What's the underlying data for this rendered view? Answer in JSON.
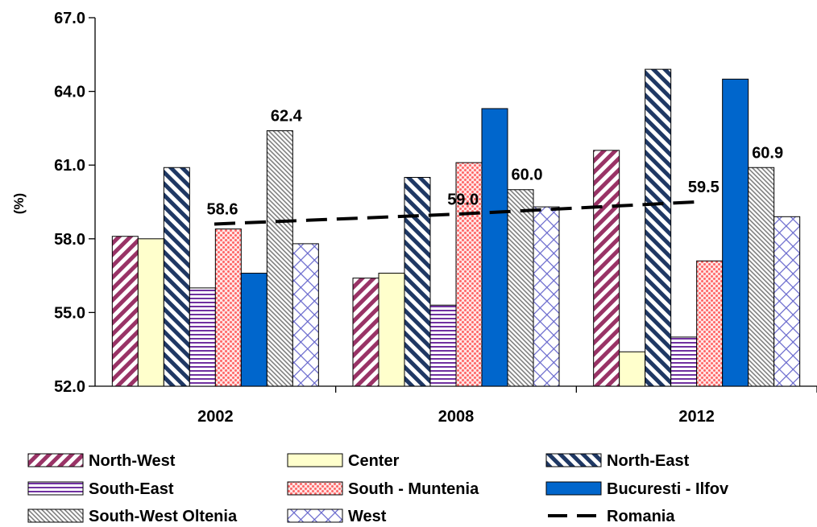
{
  "chart_data": {
    "type": "bar",
    "ylabel": "(%)",
    "ylim": [
      52.0,
      67.0
    ],
    "yticks": [
      "52.0",
      "55.0",
      "58.0",
      "61.0",
      "64.0",
      "67.0"
    ],
    "categories": [
      "2002",
      "2008",
      "2012"
    ],
    "series": [
      {
        "name": "North-West",
        "values": [
          58.1,
          56.4,
          61.6
        ],
        "pattern": "diag-maroon",
        "color": "#993366"
      },
      {
        "name": "Center",
        "values": [
          58.0,
          56.6,
          53.4
        ],
        "pattern": "solid-cream",
        "color": "#FFFFCC"
      },
      {
        "name": "North-East",
        "values": [
          60.9,
          60.5,
          64.9
        ],
        "pattern": "diag-navy",
        "color": "#1F3864"
      },
      {
        "name": "South-East",
        "values": [
          56.0,
          55.3,
          54.0
        ],
        "pattern": "horiz-purple",
        "color": "#7030A0"
      },
      {
        "name": "South - Muntenia",
        "values": [
          58.4,
          61.1,
          57.1
        ],
        "pattern": "dots-pink",
        "color": "#FF8080"
      },
      {
        "name": "Bucuresti - Ilfov",
        "values": [
          56.6,
          63.3,
          64.5
        ],
        "pattern": "solid-blue",
        "color": "#0066CC"
      },
      {
        "name": "South-West Oltenia",
        "values": [
          62.4,
          60.0,
          60.9
        ],
        "pattern": "diag-gray",
        "color": "#808080"
      },
      {
        "name": "West",
        "values": [
          57.8,
          59.3,
          58.9
        ],
        "pattern": "cross-blue",
        "color": "#6666CC"
      }
    ],
    "line_series": {
      "name": "Romania",
      "values": [
        58.6,
        59.0,
        59.5
      ],
      "style": "dashed",
      "color": "#000000"
    },
    "data_labels": [
      {
        "category": "2002",
        "series": "Romania",
        "text": "58.6"
      },
      {
        "category": "2008",
        "series": "Romania",
        "text": "59.0"
      },
      {
        "category": "2012",
        "series": "Romania",
        "text": "59.5"
      },
      {
        "category": "2002",
        "series": "South-West Oltenia",
        "text": "62.4"
      },
      {
        "category": "2008",
        "series": "South-West Oltenia",
        "text": "60.0"
      },
      {
        "category": "2012",
        "series": "South-West Oltenia",
        "text": "60.9"
      }
    ],
    "grid": false,
    "legend_position": "bottom"
  }
}
